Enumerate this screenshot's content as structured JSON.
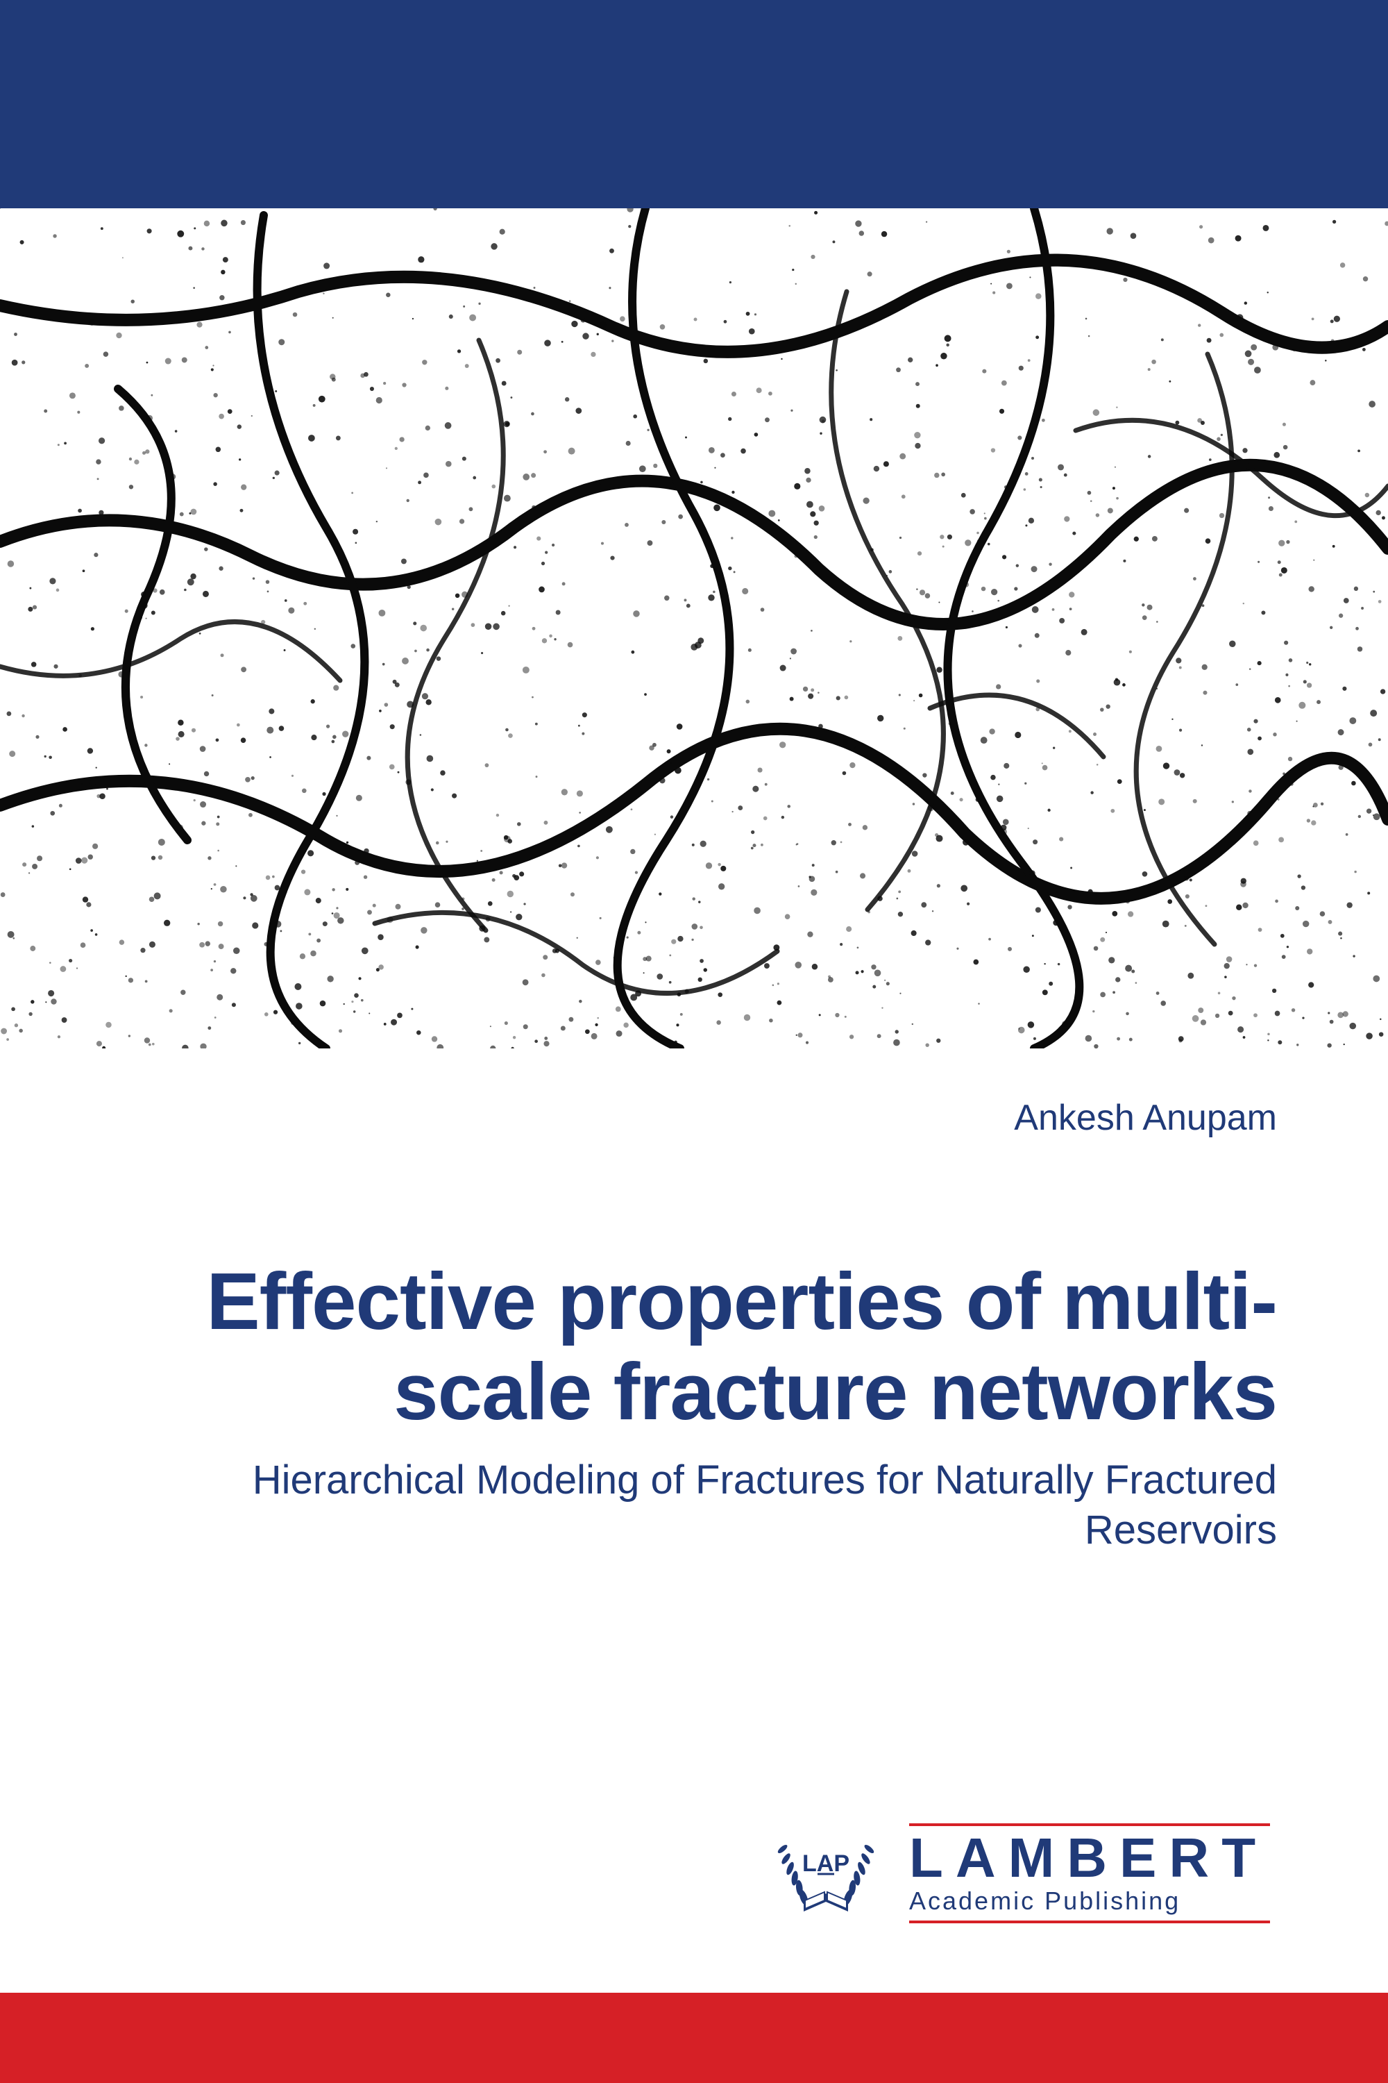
{
  "colors": {
    "top_band": "#203a78",
    "bottom_band": "#d62026",
    "text_primary": "#203a78",
    "brand_rule": "#d62026",
    "background": "#ffffff",
    "crack": "#0a0a0a"
  },
  "author": "Ankesh Anupam",
  "title": "Effective properties of multi-scale fracture networks",
  "subtitle": "Hierarchical Modeling of Fractures for Naturally Fractured Reservoirs",
  "publisher": {
    "laurel_text": "LAP",
    "name": "LAMBERT",
    "sub": "Academic Publishing"
  },
  "texture": {
    "lines": [
      "M0,140 Q220,190 430,120 Q640,60 880,170 Q1080,260 1310,130 Q1540,10 1760,150 Q1900,240 2000,170",
      "M0,480 Q180,410 360,500 Q560,600 740,460 Q960,300 1180,520 Q1380,700 1600,470 Q1820,260 2000,490",
      "M0,860 Q240,770 470,910 Q680,1030 930,830 Q1160,640 1390,900 Q1610,1110 1830,850 Q1940,720 2000,880",
      "M380,10 Q340,240 470,460 Q590,660 450,900 Q320,1110 470,1210",
      "M930,0 Q870,210 1000,440 Q1120,660 960,910 Q810,1140 980,1210",
      "M1490,0 Q1560,230 1420,470 Q1290,700 1470,940 Q1630,1150 1490,1210",
      "M170,260 Q300,370 210,560 Q130,740 270,910",
      "M690,190 Q780,400 640,620 Q510,830 700,1040",
      "M1220,120 Q1150,350 1300,570 Q1440,790 1250,1010",
      "M1740,210 Q1830,420 1690,640 Q1560,850 1750,1060",
      "M0,660 Q140,700 260,620 Q370,550 490,680",
      "M1550,320 Q1690,270 1820,390 Q1930,490 2000,400",
      "M540,1030 Q700,980 840,1090 Q970,1180 1120,1070",
      "M1340,720 Q1480,660 1590,790"
    ],
    "speckle_count": 2200
  }
}
